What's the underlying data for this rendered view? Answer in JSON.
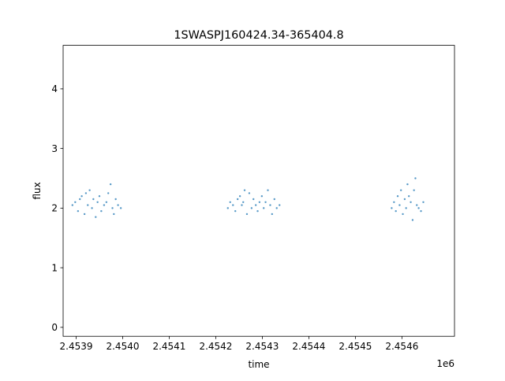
{
  "chart_data": {
    "type": "scatter",
    "title": "1SWASPJ160424.34-365404.8",
    "xlabel": "time",
    "ylabel": "flux",
    "x_offset_label": "1e6",
    "xlim": [
      2453832,
      2454673
    ],
    "ylim": [
      -0.15,
      4.73
    ],
    "grid": false,
    "x_ticks": [
      {
        "value": 2453860,
        "label": "2.4539"
      },
      {
        "value": 2453960,
        "label": "2.4540"
      },
      {
        "value": 2454060,
        "label": "2.4541"
      },
      {
        "value": 2454160,
        "label": "2.4542"
      },
      {
        "value": 2454260,
        "label": "2.4543"
      },
      {
        "value": 2454360,
        "label": "2.4544"
      },
      {
        "value": 2454460,
        "label": "2.4545"
      },
      {
        "value": 2454560,
        "label": "2.4546"
      }
    ],
    "y_ticks": [
      {
        "value": 0,
        "label": "0"
      },
      {
        "value": 1,
        "label": "1"
      },
      {
        "value": 2,
        "label": "2"
      },
      {
        "value": 3,
        "label": "3"
      },
      {
        "value": 4,
        "label": "4"
      }
    ],
    "series": [
      {
        "color": "#1f77b4",
        "x": [
          2453852,
          2453858,
          2453864,
          2453868,
          2453872,
          2453878,
          2453881,
          2453885,
          2453889,
          2453894,
          2453897,
          2453902,
          2453906,
          2453910,
          2453914,
          2453920,
          2453925,
          2453929,
          2453934,
          2453938,
          2453941,
          2453945,
          2453950,
          2453956,
          2454186,
          2454191,
          2454197,
          2454202,
          2454207,
          2454212,
          2454216,
          2454219,
          2454222,
          2454227,
          2454232,
          2454237,
          2454241,
          2454246,
          2454250,
          2454254,
          2454259,
          2454263,
          2454267,
          2454272,
          2454277,
          2454281,
          2454286,
          2454291,
          2454297,
          2454538,
          2454543,
          2454547,
          2454551,
          2454555,
          2454558,
          2454562,
          2454566,
          2454569,
          2454572,
          2454575,
          2454579,
          2454583,
          2454586,
          2454589,
          2454592,
          2454596,
          2454601,
          2454606
        ],
        "y": [
          2.05,
          2.1,
          1.95,
          2.15,
          2.2,
          1.9,
          2.25,
          2.05,
          2.3,
          2.0,
          2.15,
          1.85,
          2.1,
          2.2,
          1.95,
          2.05,
          2.1,
          2.25,
          2.4,
          2.0,
          1.9,
          2.15,
          2.05,
          2.0,
          2.0,
          2.1,
          2.05,
          1.95,
          2.15,
          2.2,
          2.05,
          2.1,
          2.3,
          1.9,
          2.25,
          2.0,
          2.15,
          2.05,
          1.95,
          2.1,
          2.2,
          2.0,
          2.1,
          2.3,
          2.05,
          1.9,
          2.15,
          2.0,
          2.05,
          2.0,
          2.1,
          1.95,
          2.2,
          2.05,
          2.3,
          1.9,
          2.15,
          2.0,
          2.4,
          2.2,
          2.1,
          1.8,
          2.3,
          2.5,
          2.05,
          2.0,
          1.95,
          2.1
        ]
      }
    ]
  }
}
